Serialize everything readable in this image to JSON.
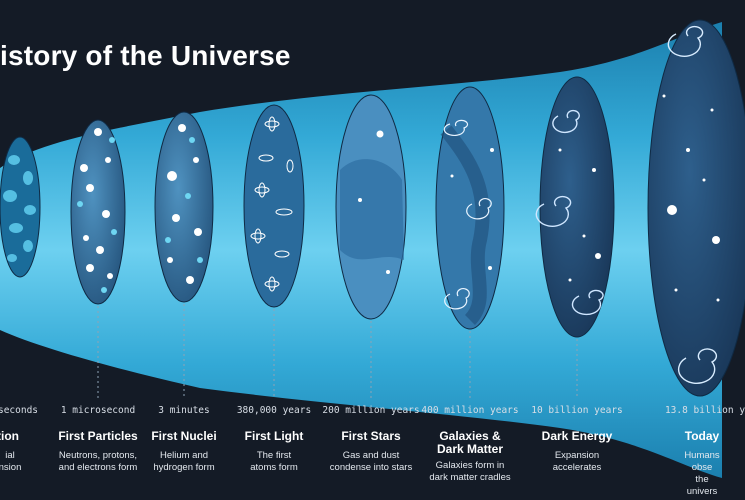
{
  "title": "istory of the Universe",
  "colors": {
    "background": "#141b26",
    "cone_outer": "#1b7fae",
    "cone_inner": "#2fa8d6",
    "cone_core": "#5fc6ea",
    "ellipse_dark": "#1f4f7a",
    "ellipse_mid": "#3a7fb0"
  },
  "eras": [
    {
      "time": "seconds",
      "name": "tion",
      "desc": [
        "ial",
        "nsion"
      ]
    },
    {
      "time": "1 microsecond",
      "name": "First Particles",
      "desc": [
        "Neutrons, protons,",
        "and electrons form"
      ]
    },
    {
      "time": "3 minutes",
      "name": "First Nuclei",
      "desc": [
        "Helium and",
        "hydrogen form"
      ]
    },
    {
      "time": "380,000 years",
      "name": "First Light",
      "desc": [
        "The first",
        "atoms form"
      ]
    },
    {
      "time": "200 million years",
      "name": "First Stars",
      "desc": [
        "Gas and dust",
        "condense into stars"
      ]
    },
    {
      "time": "400 million years",
      "name": "Galaxies & Dark Matter",
      "desc": [
        "Galaxies form in",
        "dark matter cradles"
      ]
    },
    {
      "time": "10 billion years",
      "name": "Dark Energy",
      "desc": [
        "Expansion",
        "accelerates"
      ]
    },
    {
      "time": "13.8 billion y",
      "name": "Today",
      "desc": [
        "Humans obse",
        "the univers"
      ]
    }
  ]
}
